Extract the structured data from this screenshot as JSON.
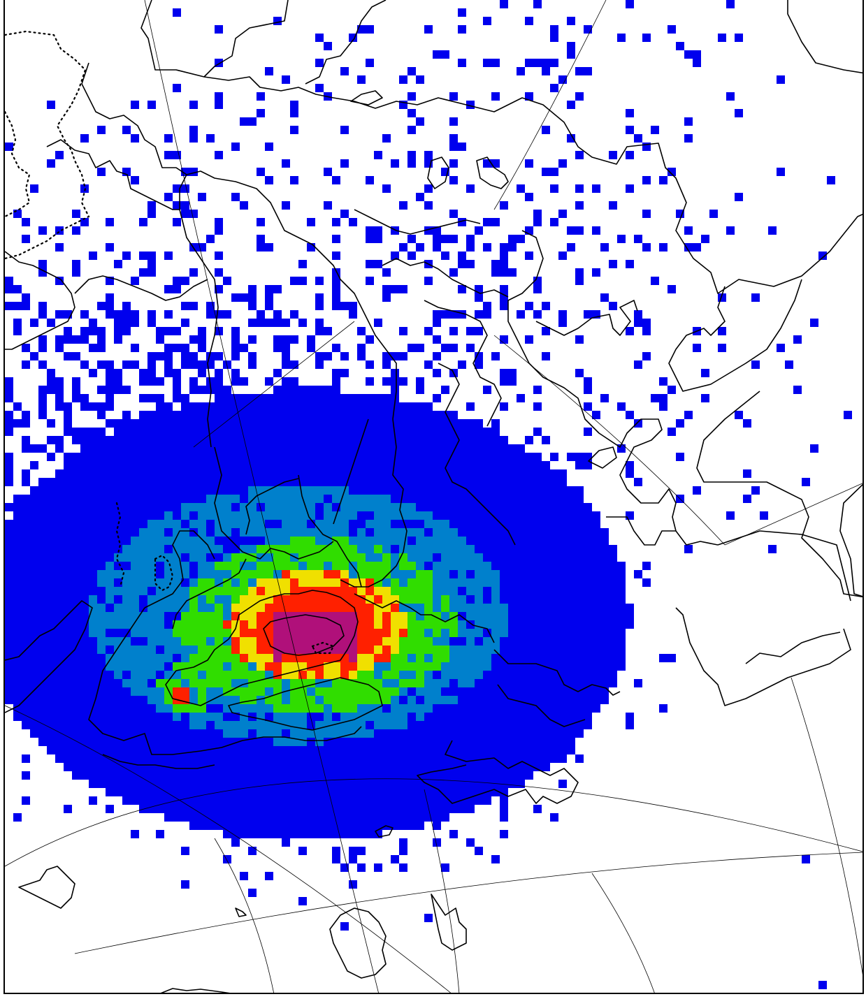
{
  "map": {
    "type": "gridded-density-map",
    "colors": {
      "level_1": "#0000ee",
      "level_2": "#0080cc",
      "level_3": "#30dd00",
      "level_4": "#f0e000",
      "level_5": "#ff2000",
      "level_6": "#b0107a",
      "coastline": "#000000",
      "graticule": "#000000",
      "background": "#ffffff"
    }
  }
}
